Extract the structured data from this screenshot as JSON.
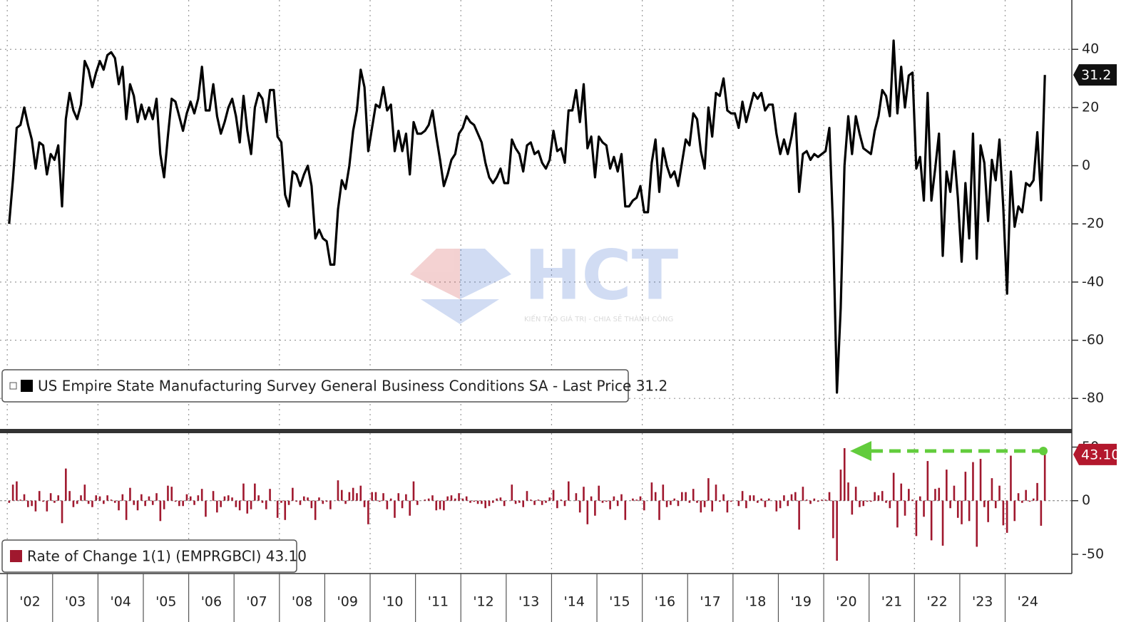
{
  "chart_data": [
    {
      "type": "line",
      "ylim": [
        -90,
        55
      ],
      "yticks": [
        -80,
        -60,
        -40,
        -20,
        0,
        20,
        40
      ],
      "grid": true,
      "xlim": [
        2001.84,
        2025.47
      ],
      "series": [
        {
          "name": "US Empire State Manufacturing Survey General Business Conditions SA - Last Price 31.2",
          "color": "#000000",
          "last_label": "31.2",
          "values": [
            -20,
            -5,
            13,
            14,
            20,
            14,
            9,
            -1,
            8,
            7,
            -3,
            4,
            2,
            7,
            -14,
            16,
            25,
            19,
            16,
            21,
            36,
            33,
            27,
            32,
            36,
            33,
            38,
            39,
            37,
            28,
            34,
            16,
            28,
            24,
            15,
            21,
            16,
            20,
            16,
            23,
            4,
            -4,
            10,
            23,
            22,
            17,
            12,
            18,
            22,
            18,
            23,
            34,
            19,
            19,
            28,
            17,
            11,
            15,
            20,
            23,
            17,
            8,
            24,
            12,
            4,
            20,
            25,
            23,
            15,
            26,
            26,
            10,
            8,
            -10,
            -14,
            -2,
            -3,
            -7,
            -3,
            0,
            -7,
            -25,
            -22,
            -25,
            -26,
            -34,
            -34,
            -15,
            -5,
            -8,
            0,
            12,
            19,
            33,
            27,
            5,
            13,
            21,
            20,
            27,
            19,
            21,
            5,
            12,
            5,
            11,
            -3,
            15,
            11,
            11,
            12,
            14,
            19,
            10,
            2,
            -7,
            -3,
            2,
            4,
            11,
            13,
            17,
            15,
            14,
            11,
            8,
            1,
            -4,
            -6,
            -4,
            -1,
            -6,
            -6,
            9,
            6,
            4,
            -2,
            7,
            8,
            4,
            5,
            1,
            -1,
            2,
            12,
            5,
            6,
            1,
            19,
            19,
            26,
            15,
            28,
            6,
            10,
            -4,
            10,
            8,
            7,
            -1,
            3,
            -2,
            4,
            -14,
            -14,
            -12,
            -11,
            -7,
            -16,
            -16,
            1,
            9,
            -9,
            6,
            0,
            -4,
            -2,
            -7,
            1,
            9,
            7,
            18,
            16,
            5,
            -1,
            20,
            10,
            25,
            24,
            30,
            19,
            18,
            18,
            13,
            22,
            15,
            20,
            25,
            23,
            25,
            19,
            21,
            21,
            11,
            4,
            9,
            4,
            10,
            18,
            -9,
            4,
            5,
            2,
            4,
            3,
            4,
            5,
            13,
            -22,
            -78,
            -49,
            0,
            17,
            4,
            17,
            11,
            6,
            5,
            4,
            12,
            17,
            26,
            24,
            17,
            43,
            18,
            34,
            20,
            31,
            32,
            -1,
            3,
            -12,
            25,
            -12,
            -1,
            11,
            -31,
            -2,
            -9,
            5,
            -11,
            -33,
            -6,
            -25,
            11,
            -32,
            7,
            1,
            -19,
            2,
            -5,
            9,
            -14,
            -44,
            -2,
            -21,
            -14,
            -16,
            -6,
            -7,
            -5,
            11.5,
            -11.9,
            31.2
          ]
        }
      ]
    },
    {
      "type": "bar",
      "ylim": [
        -68,
        55
      ],
      "yticks": [
        -50,
        0,
        50
      ],
      "xlim": [
        2001.84,
        2025.47
      ],
      "xticks": [
        {
          "value": 2002,
          "label": "'02"
        },
        {
          "value": 2003,
          "label": "'03"
        },
        {
          "value": 2004,
          "label": "'04"
        },
        {
          "value": 2005,
          "label": "'05"
        },
        {
          "value": 2006,
          "label": "'06"
        },
        {
          "value": 2007,
          "label": "'07"
        },
        {
          "value": 2008,
          "label": "'08"
        },
        {
          "value": 2009,
          "label": "'09"
        },
        {
          "value": 2010,
          "label": "'10"
        },
        {
          "value": 2011,
          "label": "'11"
        },
        {
          "value": 2012,
          "label": "'12"
        },
        {
          "value": 2013,
          "label": "'13"
        },
        {
          "value": 2014,
          "label": "'14"
        },
        {
          "value": 2015,
          "label": "'15"
        },
        {
          "value": 2016,
          "label": "'16"
        },
        {
          "value": 2017,
          "label": "'17"
        },
        {
          "value": 2018,
          "label": "'18"
        },
        {
          "value": 2019,
          "label": "'19"
        },
        {
          "value": 2020,
          "label": "'20"
        },
        {
          "value": 2021,
          "label": "'21"
        },
        {
          "value": 2022,
          "label": "'22"
        },
        {
          "value": 2023,
          "label": "'23"
        },
        {
          "value": 2024,
          "label": "'24"
        }
      ],
      "series": [
        {
          "name": "Rate of Change 1(1) (EMPRGBCI) 43.10",
          "color": "#a0182e",
          "last_label": "43.10",
          "values": [
            -2,
            15,
            18,
            1,
            6,
            -6,
            -5,
            -10,
            9,
            -1,
            -10,
            7,
            -2,
            5,
            -21,
            30,
            9,
            -6,
            -3,
            5,
            15,
            -3,
            -6,
            5,
            4,
            -3,
            5,
            1,
            -2,
            -9,
            6,
            -18,
            12,
            -4,
            -9,
            6,
            -5,
            4,
            -4,
            7,
            -19,
            -8,
            14,
            13,
            -1,
            -5,
            -5,
            6,
            4,
            -4,
            5,
            11,
            -15,
            0,
            9,
            -11,
            -6,
            4,
            5,
            3,
            -6,
            -9,
            16,
            -12,
            -8,
            16,
            5,
            -2,
            -8,
            11,
            0,
            -16,
            -2,
            -18,
            -4,
            12,
            -1,
            -4,
            4,
            3,
            -7,
            -18,
            3,
            -3,
            -1,
            -8,
            0,
            19,
            10,
            -3,
            8,
            12,
            7,
            14,
            -6,
            -22,
            8,
            8,
            -1,
            7,
            -8,
            2,
            -16,
            7,
            -7,
            6,
            -14,
            18,
            -4,
            0,
            1,
            2,
            5,
            -9,
            -8,
            -9,
            4,
            5,
            2,
            7,
            2,
            4,
            -2,
            -1,
            -3,
            -3,
            -7,
            -5,
            -2,
            2,
            3,
            -5,
            0,
            15,
            -3,
            -2,
            -6,
            9,
            1,
            -4,
            1,
            -4,
            -2,
            3,
            10,
            -7,
            1,
            -5,
            18,
            0,
            7,
            -11,
            13,
            -22,
            4,
            -14,
            14,
            -2,
            -1,
            -8,
            4,
            -5,
            6,
            -18,
            0,
            2,
            1,
            4,
            -9,
            0,
            17,
            8,
            -18,
            15,
            -6,
            -4,
            2,
            -5,
            8,
            8,
            -2,
            11,
            -2,
            -11,
            -6,
            21,
            -10,
            15,
            -1,
            6,
            -11,
            -1,
            0,
            -5,
            9,
            -7,
            5,
            5,
            -2,
            2,
            -6,
            2,
            0,
            -10,
            -7,
            5,
            -5,
            6,
            8,
            -27,
            13,
            1,
            -3,
            2,
            -1,
            1,
            1,
            8,
            -35,
            -56,
            29,
            49,
            17,
            -13,
            13,
            -6,
            -5,
            -1,
            -1,
            8,
            5,
            9,
            -2,
            -7,
            26,
            -25,
            16,
            -14,
            11,
            1,
            -33,
            4,
            -15,
            37,
            -37,
            11,
            12,
            -42,
            29,
            -7,
            14,
            -16,
            -22,
            27,
            -19,
            36,
            -43,
            39,
            -6,
            -20,
            21,
            -7,
            14,
            -23,
            -30,
            42,
            -19,
            7,
            -2,
            10,
            -1,
            2,
            16.5,
            -23.4,
            43.1
          ]
        }
      ]
    }
  ],
  "watermark": {
    "logo": "HCT",
    "tagline": "KIẾN TẠO GIÁ TRỊ - CHIA SẺ THÀNH CÔNG"
  }
}
